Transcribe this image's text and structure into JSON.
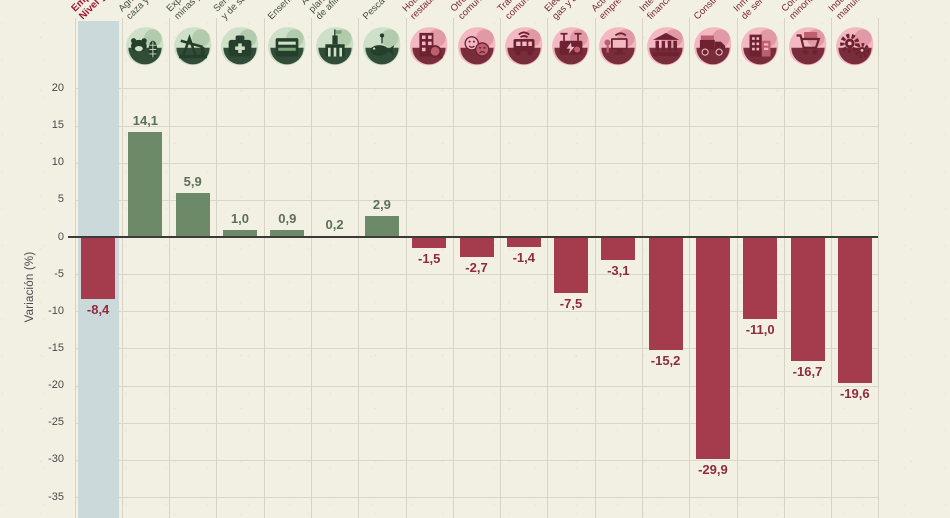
{
  "chart_data": {
    "type": "bar",
    "title": "",
    "ylabel": "Variación (%)",
    "ylim": [
      -35,
      20
    ],
    "yticks": [
      20,
      15,
      10,
      5,
      0,
      -5,
      -10,
      -15,
      -20,
      -25,
      -30,
      -35
    ],
    "grid": true,
    "legend_position": "none",
    "number_format": "decimal-comma",
    "bars": [
      {
        "label": "Empleo\nNivel general",
        "value": -8.4,
        "value_label": "-8,4",
        "group": "neg",
        "icon": null,
        "highlighted": true,
        "emphasis": true
      },
      {
        "label": "Agricultura, ganadería,\ncaza y silvicultura",
        "value": 14.1,
        "value_label": "14,1",
        "group": "pos",
        "icon": "cow-agriculture-icon"
      },
      {
        "label": "Explotación de\nminas y canteras",
        "value": 5.9,
        "value_label": "5,9",
        "group": "pos",
        "icon": "oil-pump-mining-icon"
      },
      {
        "label": "Servicios sociales\ny de salud",
        "value": 1.0,
        "value_label": "1,0",
        "group": "pos",
        "icon": "first-aid-health-icon"
      },
      {
        "label": "Enseñanza",
        "value": 0.9,
        "value_label": "0,9",
        "group": "pos",
        "icon": "books-education-icon"
      },
      {
        "label": "Administración pública,\nplanes de seguridad social\nde afiliación obligatoria",
        "value": 0.2,
        "value_label": "0,2",
        "group": "pos",
        "icon": "government-building-icon"
      },
      {
        "label": "Pesca",
        "value": 2.9,
        "value_label": "2,9",
        "group": "pos",
        "icon": "fish-icon"
      },
      {
        "label": "Hoteles y\nrestaurantes",
        "value": -1.5,
        "value_label": "-1,5",
        "group": "neg",
        "icon": "hotel-restaurant-icon"
      },
      {
        "label": "Otros servicios\ncomunitarios",
        "value": -2.7,
        "value_label": "-2,7",
        "group": "neg",
        "icon": "theater-masks-community-icon"
      },
      {
        "label": "Transporte y\ncomunicaciones",
        "value": -1.4,
        "value_label": "-1,4",
        "group": "neg",
        "icon": "bus-transport-icon"
      },
      {
        "label": "Electricidad,\ngas y agua",
        "value": -7.5,
        "value_label": "-7,5",
        "group": "neg",
        "icon": "electricity-utility-icon"
      },
      {
        "label": "Actividades\nempresariales",
        "value": -3.1,
        "value_label": "-3,1",
        "group": "neg",
        "icon": "computer-business-icon"
      },
      {
        "label": "Intermediación\nfinanciera",
        "value": -15.2,
        "value_label": "-15,2",
        "group": "neg",
        "icon": "bank-finance-icon"
      },
      {
        "label": "Construcción",
        "value": -29.9,
        "value_label": "-29,9",
        "group": "neg",
        "icon": "truck-construction-icon"
      },
      {
        "label": "Inmobiliarias y\nde servicios",
        "value": -11.0,
        "value_label": "-11,0",
        "group": "neg",
        "icon": "buildings-realestate-icon"
      },
      {
        "label": "Comercio\nminorista",
        "value": -16.7,
        "value_label": "-16,7",
        "group": "neg",
        "icon": "shopping-cart-retail-icon"
      },
      {
        "label": "Industria\nmanufacturera",
        "value": -19.6,
        "value_label": "-19,6",
        "group": "neg",
        "icon": "gears-industry-icon"
      }
    ],
    "colors": {
      "background": "#f2efe3",
      "positive_bar": "#6c8a67",
      "negative_bar": "#a53c4d",
      "positive_value_text": "#5b7055",
      "negative_value_text": "#8e2b3e",
      "emphasis_label_text": "#9c1b34",
      "highlight_column": "#ccd9da",
      "gridline": "#d8d4c7",
      "zero_line": "#3d3b38",
      "tick_text": "#4a4a4a",
      "positive_icon": {
        "light": "#cfe0c8",
        "mid": "#7fa37c",
        "dark": "#24402c"
      },
      "negative_icon": {
        "light": "#f3b9c3",
        "mid": "#bd5f6e",
        "dark": "#6e2130"
      }
    }
  }
}
